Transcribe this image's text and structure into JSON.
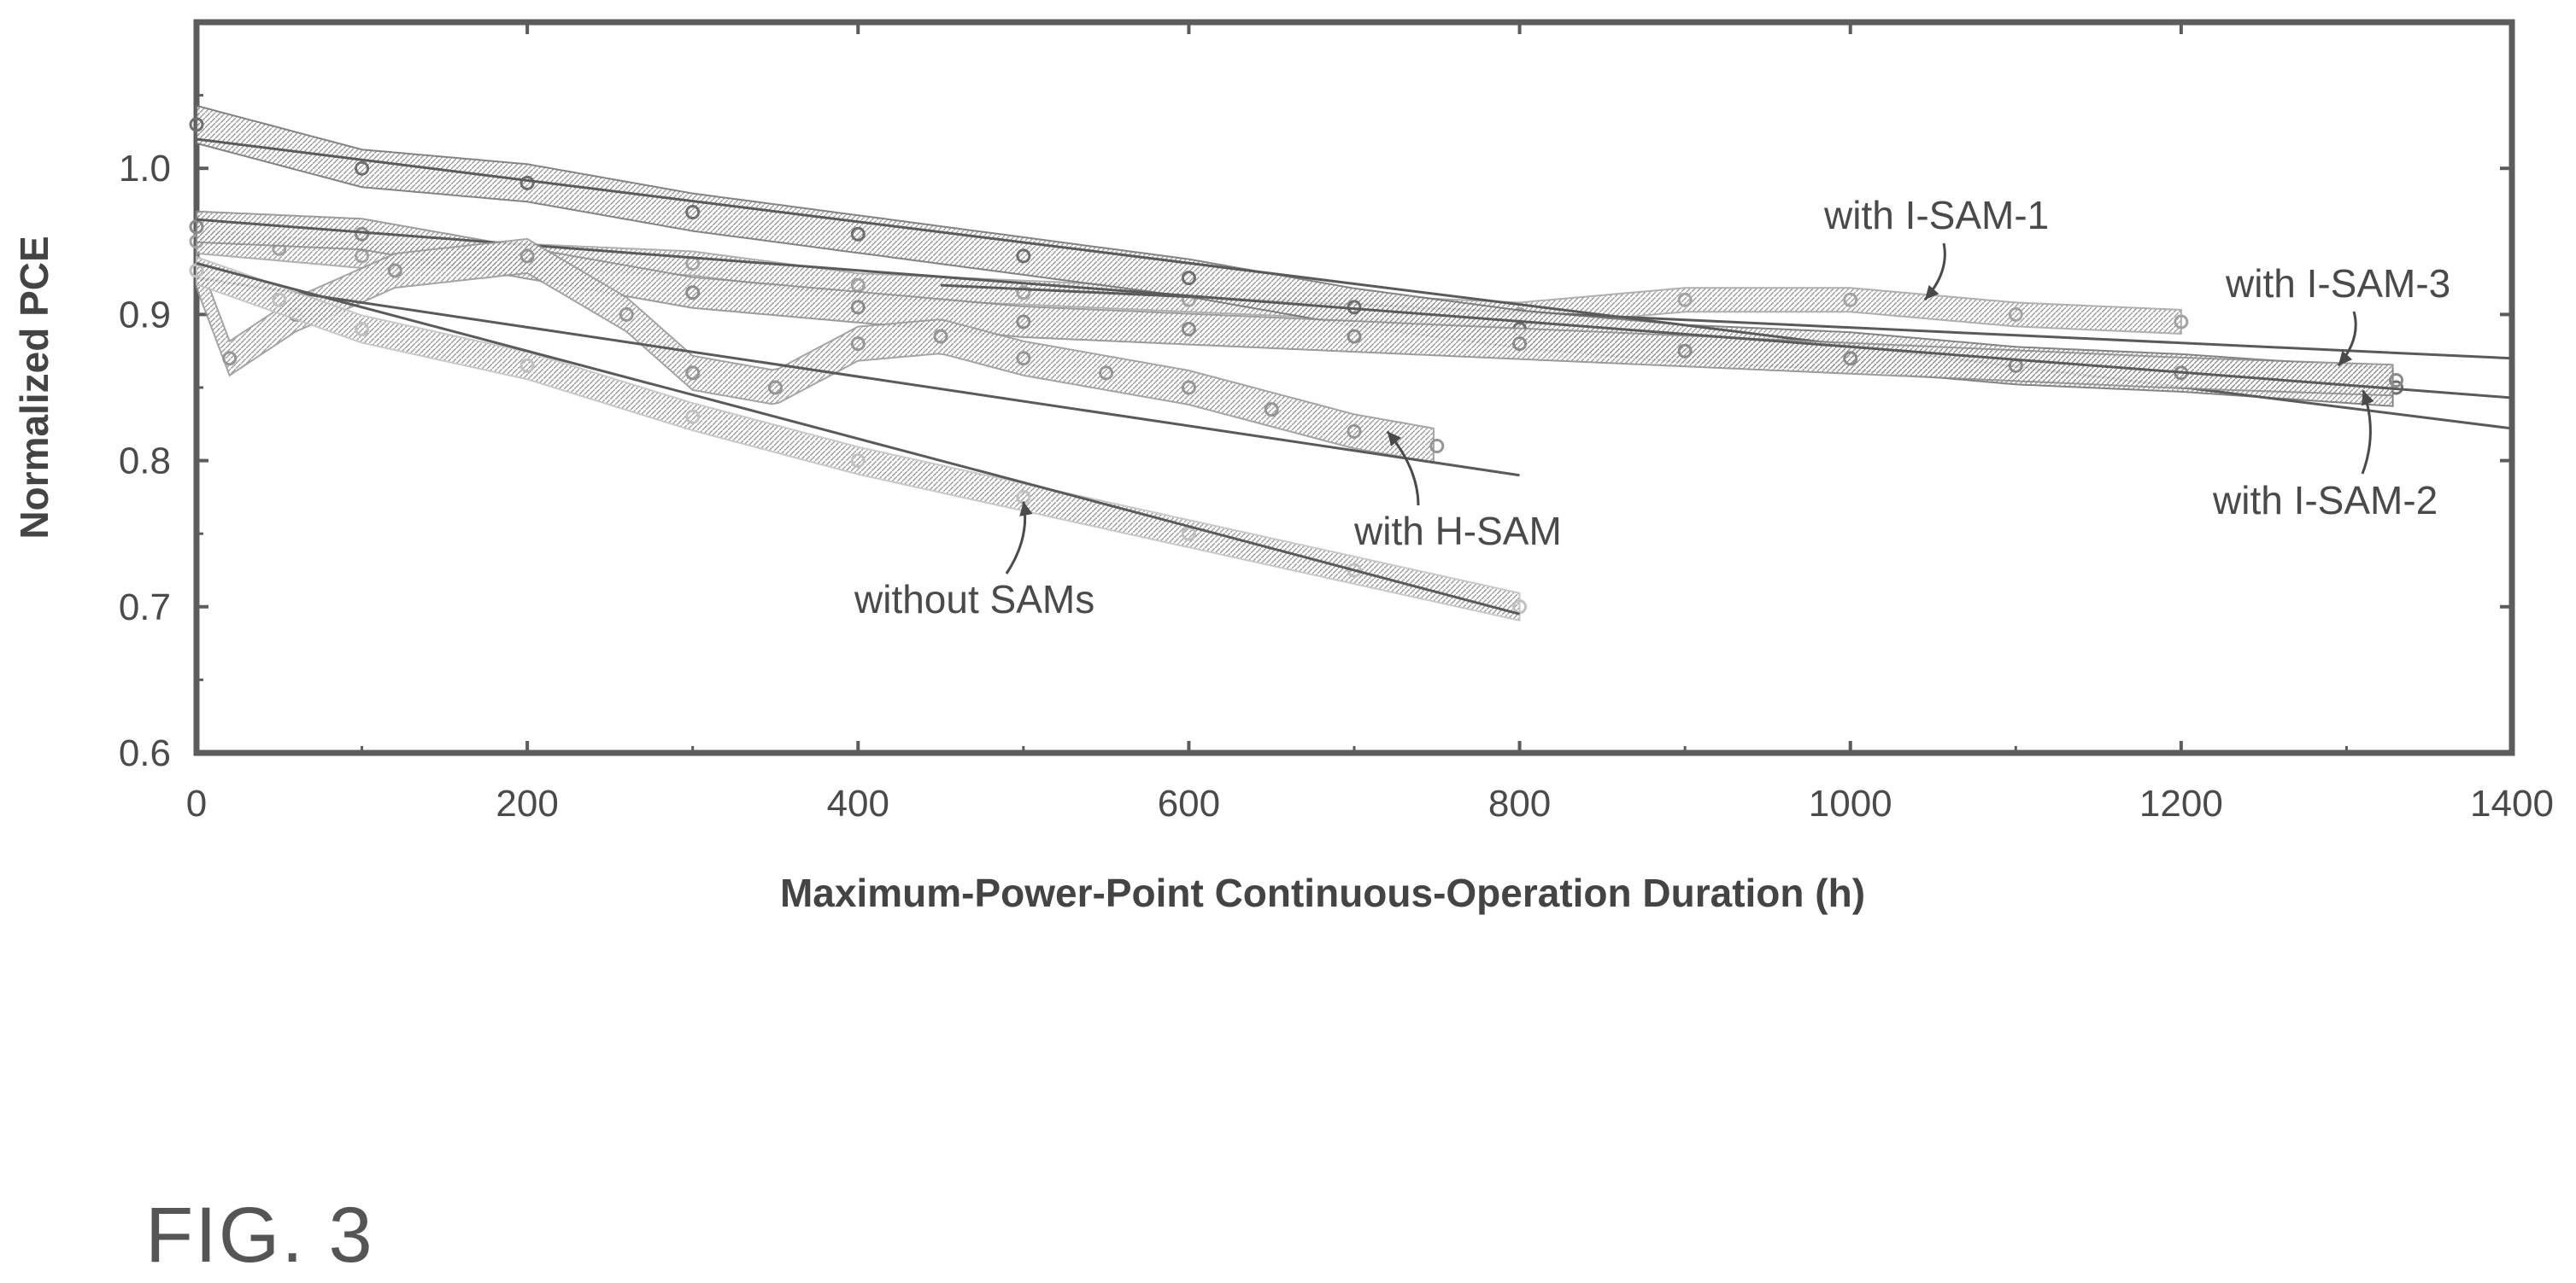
{
  "figure_label": "FIG. 3",
  "chart_data": {
    "type": "scatter",
    "title": "",
    "xlabel": "Maximum-Power-Point Continuous-Operation Duration (h)",
    "ylabel": "Normalized PCE",
    "xlim": [
      0,
      1400
    ],
    "ylim": [
      0.6,
      1.1
    ],
    "xticks": [
      0,
      200,
      400,
      600,
      800,
      1000,
      1200,
      1400
    ],
    "yticks": [
      0.6,
      0.7,
      0.8,
      0.9,
      1.0
    ],
    "ytick_labels": [
      "0.6",
      "0.7",
      "0.8",
      "0.9",
      "1.0"
    ],
    "grid": false,
    "legend": "none (series labeled by annotations)",
    "series": [
      {
        "name": "with I-SAM-1",
        "color": "#a2a2a2",
        "points_x": [
          0,
          50,
          100,
          200,
          300,
          400,
          500,
          600,
          700,
          800,
          900,
          1000,
          1100,
          1200
        ],
        "points_y": [
          0.95,
          0.945,
          0.94,
          0.94,
          0.935,
          0.92,
          0.915,
          0.91,
          0.905,
          0.9,
          0.91,
          0.91,
          0.9,
          0.895
        ],
        "fit_x": [
          450,
          1400
        ],
        "fit_y": [
          0.92,
          0.87
        ]
      },
      {
        "name": "with I-SAM-2",
        "color": "#6e6e6e",
        "points_x": [
          0,
          100,
          200,
          300,
          400,
          500,
          600,
          700,
          800,
          900,
          1000,
          1100,
          1200,
          1330
        ],
        "points_y": [
          1.03,
          1.0,
          0.99,
          0.97,
          0.955,
          0.94,
          0.925,
          0.905,
          0.89,
          0.88,
          0.875,
          0.865,
          0.86,
          0.85
        ],
        "fit_x": [
          0,
          1400
        ],
        "fit_y": [
          1.02,
          0.822
        ]
      },
      {
        "name": "with I-SAM-3",
        "color": "#8a8a8a",
        "points_x": [
          0,
          100,
          200,
          300,
          400,
          500,
          600,
          700,
          800,
          900,
          1000,
          1100,
          1200,
          1330
        ],
        "points_y": [
          0.96,
          0.955,
          0.935,
          0.915,
          0.905,
          0.895,
          0.89,
          0.885,
          0.88,
          0.875,
          0.87,
          0.865,
          0.86,
          0.855
        ],
        "fit_x": [
          0,
          1400
        ],
        "fit_y": [
          0.965,
          0.843
        ]
      },
      {
        "name": "with H-SAM",
        "color": "#959595",
        "points_x": [
          0,
          20,
          60,
          120,
          200,
          260,
          300,
          350,
          400,
          450,
          500,
          550,
          600,
          650,
          700,
          750
        ],
        "points_y": [
          0.93,
          0.87,
          0.9,
          0.93,
          0.94,
          0.9,
          0.86,
          0.85,
          0.88,
          0.885,
          0.87,
          0.86,
          0.85,
          0.835,
          0.82,
          0.81
        ],
        "fit_x": [
          0,
          800
        ],
        "fit_y": [
          0.925,
          0.79
        ]
      },
      {
        "name": "without SAMs",
        "color": "#c0c0c0",
        "points_x": [
          0,
          50,
          100,
          200,
          300,
          400,
          500,
          600,
          700,
          800
        ],
        "points_y": [
          0.93,
          0.91,
          0.89,
          0.865,
          0.83,
          0.8,
          0.775,
          0.75,
          0.725,
          0.7
        ],
        "fit_x": [
          0,
          800
        ],
        "fit_y": [
          0.935,
          0.695
        ]
      }
    ],
    "annotations": [
      {
        "text": "with I-SAM-1",
        "series": "with I-SAM-1",
        "at_x": 1045,
        "at_y": 0.91
      },
      {
        "text": "with I-SAM-3",
        "series": "with I-SAM-3",
        "at_x": 1295,
        "at_y": 0.865
      },
      {
        "text": "with I-SAM-2",
        "series": "with I-SAM-2",
        "at_x": 1310,
        "at_y": 0.848
      },
      {
        "text": "with H-SAM",
        "series": "with H-SAM",
        "at_x": 720,
        "at_y": 0.82
      },
      {
        "text": "without SAMs",
        "series": "without SAMs",
        "at_x": 500,
        "at_y": 0.772
      }
    ]
  }
}
